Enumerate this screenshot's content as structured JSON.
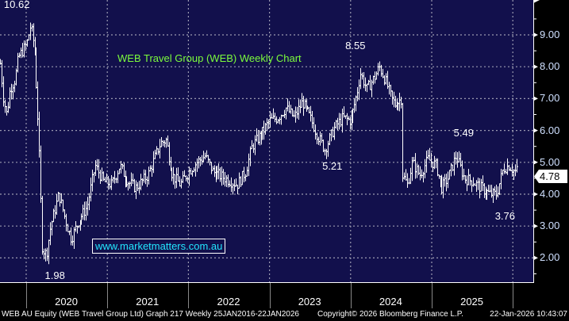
{
  "chart_data": {
    "type": "bar",
    "subtype": "ohlc-weekly",
    "title": "WEB Travel Group (WEB) Weekly Chart",
    "ylabel": "",
    "xlabel": "",
    "ylim": [
      1.2,
      10.1
    ],
    "xlim": [
      2019.68,
      2026.1
    ],
    "yticks": [
      "2.00",
      "3.00",
      "4.00",
      "5.00",
      "6.00",
      "7.00",
      "8.00",
      "9.00"
    ],
    "xticks": [
      "2020",
      "2021",
      "2022",
      "2023",
      "2024",
      "2025"
    ],
    "grid": true,
    "key_points": [
      [
        2019.68,
        8.1
      ],
      [
        2019.72,
        7.0
      ],
      [
        2019.76,
        6.5
      ],
      [
        2019.8,
        7.3
      ],
      [
        2019.86,
        7.6
      ],
      [
        2019.9,
        8.3
      ],
      [
        2019.95,
        8.5
      ],
      [
        2020.0,
        8.7
      ],
      [
        2020.05,
        9.3
      ],
      [
        2020.1,
        8.6
      ],
      [
        2020.15,
        6.0
      ],
      [
        2020.2,
        2.3
      ],
      [
        2020.25,
        2.1
      ],
      [
        2020.3,
        3.0
      ],
      [
        2020.4,
        4.0
      ],
      [
        2020.5,
        3.0
      ],
      [
        2020.55,
        2.6
      ],
      [
        2020.65,
        3.2
      ],
      [
        2020.75,
        3.6
      ],
      [
        2020.85,
        4.9
      ],
      [
        2020.95,
        4.4
      ],
      [
        2021.05,
        4.3
      ],
      [
        2021.15,
        4.9
      ],
      [
        2021.25,
        4.4
      ],
      [
        2021.35,
        4.2
      ],
      [
        2021.5,
        4.6
      ],
      [
        2021.65,
        5.6
      ],
      [
        2021.72,
        5.7
      ],
      [
        2021.8,
        4.6
      ],
      [
        2021.9,
        4.3
      ],
      [
        2022.0,
        4.7
      ],
      [
        2022.1,
        5.0
      ],
      [
        2022.2,
        5.2
      ],
      [
        2022.3,
        4.7
      ],
      [
        2022.45,
        4.5
      ],
      [
        2022.6,
        4.3
      ],
      [
        2022.7,
        4.7
      ],
      [
        2022.78,
        5.5
      ],
      [
        2022.9,
        5.9
      ],
      [
        2023.0,
        6.3
      ],
      [
        2023.1,
        6.4
      ],
      [
        2023.2,
        6.7
      ],
      [
        2023.3,
        6.4
      ],
      [
        2023.4,
        6.9
      ],
      [
        2023.5,
        6.4
      ],
      [
        2023.6,
        5.8
      ],
      [
        2023.68,
        5.4
      ],
      [
        2023.8,
        6.1
      ],
      [
        2023.9,
        6.4
      ],
      [
        2024.0,
        6.3
      ],
      [
        2024.08,
        7.2
      ],
      [
        2024.12,
        7.8
      ],
      [
        2024.2,
        7.3
      ],
      [
        2024.3,
        7.7
      ],
      [
        2024.35,
        8.0
      ],
      [
        2024.42,
        7.6
      ],
      [
        2024.5,
        7.0
      ],
      [
        2024.55,
        6.8
      ],
      [
        2024.62,
        7.0
      ],
      [
        2024.64,
        4.6
      ],
      [
        2024.7,
        4.3
      ],
      [
        2024.76,
        5.0
      ],
      [
        2024.85,
        4.6
      ],
      [
        2024.95,
        5.1
      ],
      [
        2025.05,
        4.9
      ],
      [
        2025.12,
        4.2
      ],
      [
        2025.2,
        4.5
      ],
      [
        2025.3,
        5.2
      ],
      [
        2025.4,
        4.5
      ],
      [
        2025.5,
        4.4
      ],
      [
        2025.6,
        4.2
      ],
      [
        2025.72,
        4.0
      ],
      [
        2025.8,
        4.0
      ],
      [
        2025.88,
        4.8
      ],
      [
        2025.95,
        4.9
      ],
      [
        2026.02,
        4.7
      ],
      [
        2026.06,
        4.78
      ]
    ],
    "annotations": [
      {
        "text": "10.62",
        "x": 2019.97,
        "y": 10.62
      },
      {
        "text": "1.98",
        "x": 2020.25,
        "y": 1.98
      },
      {
        "text": "8.55",
        "x": 2024.15,
        "y": 8.55
      },
      {
        "text": "5.21",
        "x": 2023.68,
        "y": 5.21
      },
      {
        "text": "5.49",
        "x": 2025.3,
        "y": 5.49
      },
      {
        "text": "3.76",
        "x": 2025.78,
        "y": 3.76
      }
    ],
    "last_price": "4.78"
  },
  "watermark": "www.marketmatters.com.au",
  "footer": {
    "security": "WEB AU Equity (WEB Travel Group Ltd) Graph 217 Weekly 25JAN2016-22JAN2026",
    "copyright": "Copyright© 2026 Bloomberg Finance L.P.",
    "timestamp": "22-Jan-2026 10:43:07"
  },
  "colors": {
    "background": "#12104c",
    "bars": "#ffffff",
    "title": "#7cfc3c",
    "watermark": "#22e6ff",
    "axis_text": "#cfe0ff"
  }
}
